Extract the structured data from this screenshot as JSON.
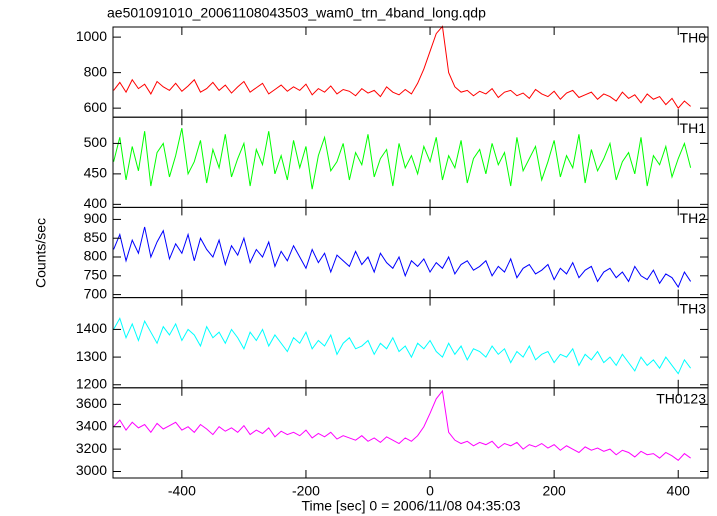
{
  "chart_data": {
    "type": "line",
    "title": "ae501091010_20061108043503_wam0_trn_4band_long.qdp",
    "x_label": "Time [sec] 0 = 2006/11/08 04:35:03",
    "y_label": "Counts/sec",
    "xlim": [
      -511,
      448
    ],
    "xticks": [
      -400,
      -200,
      0,
      200,
      400
    ],
    "x": [
      -510,
      -500,
      -490,
      -480,
      -470,
      -460,
      -450,
      -440,
      -430,
      -420,
      -410,
      -400,
      -390,
      -380,
      -370,
      -360,
      -350,
      -340,
      -330,
      -320,
      -310,
      -300,
      -290,
      -280,
      -270,
      -260,
      -250,
      -240,
      -230,
      -220,
      -210,
      -200,
      -190,
      -180,
      -170,
      -160,
      -150,
      -140,
      -130,
      -120,
      -110,
      -100,
      -90,
      -80,
      -70,
      -60,
      -50,
      -40,
      -30,
      -20,
      -10,
      0,
      10,
      20,
      30,
      40,
      50,
      60,
      70,
      80,
      90,
      100,
      110,
      120,
      130,
      140,
      150,
      160,
      170,
      180,
      190,
      200,
      210,
      220,
      230,
      240,
      250,
      260,
      270,
      280,
      290,
      300,
      310,
      320,
      330,
      340,
      350,
      360,
      370,
      380,
      390,
      400,
      410,
      420
    ],
    "panels": [
      {
        "ylim": [
          549,
          1057
        ],
        "yticks": [
          600,
          800,
          1000
        ],
        "series": [
          {
            "name": "TH0",
            "color": "#ff0000",
            "values": [
              700,
              745,
              690,
              760,
              710,
              735,
              680,
              750,
              720,
              700,
              740,
              695,
              725,
              760,
              690,
              710,
              745,
              700,
              730,
              685,
              720,
              750,
              690,
              715,
              740,
              680,
              705,
              730,
              695,
              720,
              700,
              735,
              675,
              710,
              690,
              725,
              680,
              705,
              695,
              670,
              710,
              685,
              700,
              665,
              720,
              690,
              675,
              705,
              680,
              740,
              820,
              920,
              1020,
              1060,
              800,
              720,
              690,
              700,
              670,
              695,
              680,
              710,
              660,
              690,
              700,
              670,
              685,
              655,
              705,
              680,
              665,
              695,
              650,
              685,
              700,
              660,
              675,
              690,
              650,
              680,
              665,
              640,
              690,
              655,
              675,
              630,
              680,
              650,
              665,
              620,
              655,
              600,
              640,
              610
            ]
          }
        ]
      },
      {
        "ylim": [
          395,
          543
        ],
        "yticks": [
          400,
          450,
          500
        ],
        "series": [
          {
            "name": "TH1",
            "color": "#00ff00",
            "values": [
              470,
              510,
              440,
              495,
              455,
              520,
              430,
              485,
              500,
              445,
              480,
              525,
              450,
              470,
              505,
              435,
              490,
              460,
              515,
              445,
              475,
              500,
              430,
              490,
              465,
              520,
              450,
              480,
              440,
              505,
              460,
              495,
              425,
              480,
              510,
              455,
              470,
              500,
              440,
              485,
              465,
              515,
              445,
              475,
              490,
              430,
              500,
              460,
              480,
              450,
              495,
              470,
              510,
              440,
              480,
              460,
              505,
              435,
              475,
              490,
              450,
              500,
              465,
              485,
              430,
              510,
              455,
              475,
              495,
              440,
              470,
              505,
              445,
              480,
              460,
              515,
              435,
              490,
              455,
              475,
              500,
              440,
              470,
              485,
              450,
              510,
              430,
              480,
              465,
              495,
              445,
              475,
              500,
              460
            ]
          }
        ]
      },
      {
        "ylim": [
          692,
          932
        ],
        "yticks": [
          700,
          750,
          800,
          850,
          900
        ],
        "series": [
          {
            "name": "TH2",
            "color": "#0000ff",
            "values": [
              820,
              860,
              790,
              845,
              810,
              880,
              800,
              840,
              870,
              795,
              835,
              810,
              860,
              790,
              850,
              820,
              800,
              845,
              780,
              830,
              805,
              850,
              785,
              820,
              800,
              840,
              775,
              815,
              790,
              830,
              800,
              770,
              820,
              785,
              810,
              760,
              805,
              790,
              775,
              815,
              780,
              800,
              760,
              810,
              785,
              770,
              800,
              750,
              790,
              775,
              795,
              760,
              785,
              770,
              800,
              755,
              780,
              790,
              765,
              775,
              790,
              750,
              775,
              760,
              795,
              745,
              770,
              780,
              755,
              765,
              780,
              740,
              770,
              755,
              785,
              745,
              765,
              775,
              735,
              760,
              770,
              745,
              760,
              735,
              775,
              750,
              740,
              765,
              730,
              755,
              745,
              720,
              760,
              735
            ]
          }
        ]
      },
      {
        "ylim": [
          1189,
          1515
        ],
        "yticks": [
          1200,
          1300,
          1400
        ],
        "series": [
          {
            "name": "TH3",
            "color": "#00ffff",
            "values": [
              1400,
              1440,
              1370,
              1420,
              1360,
              1430,
              1390,
              1350,
              1410,
              1380,
              1420,
              1360,
              1400,
              1380,
              1340,
              1410,
              1370,
              1390,
              1350,
              1400,
              1370,
              1330,
              1390,
              1360,
              1400,
              1340,
              1380,
              1350,
              1320,
              1370,
              1350,
              1390,
              1330,
              1360,
              1340,
              1380,
              1310,
              1350,
              1370,
              1330,
              1340,
              1360,
              1310,
              1350,
              1330,
              1370,
              1320,
              1340,
              1300,
              1350,
              1330,
              1360,
              1320,
              1300,
              1350,
              1310,
              1340,
              1290,
              1330,
              1320,
              1300,
              1340,
              1310,
              1330,
              1280,
              1320,
              1300,
              1340,
              1290,
              1310,
              1320,
              1280,
              1310,
              1300,
              1330,
              1270,
              1310,
              1290,
              1320,
              1280,
              1300,
              1270,
              1310,
              1280,
              1250,
              1300,
              1270,
              1290,
              1260,
              1300,
              1270,
              1240,
              1290,
              1260
            ]
          }
        ]
      },
      {
        "ylim": [
          2942,
          3748
        ],
        "yticks": [
          3000,
          3200,
          3400,
          3600
        ],
        "series": [
          {
            "name": "TH0123",
            "color": "#ff00ff",
            "values": [
              3400,
              3460,
              3370,
              3440,
              3390,
              3420,
              3350,
              3430,
              3380,
              3410,
              3440,
              3370,
              3400,
              3350,
              3420,
              3380,
              3330,
              3400,
              3360,
              3390,
              3350,
              3410,
              3330,
              3370,
              3340,
              3390,
              3310,
              3360,
              3330,
              3350,
              3320,
              3370,
              3300,
              3340,
              3310,
              3350,
              3290,
              3320,
              3300,
              3280,
              3320,
              3270,
              3300,
              3260,
              3310,
              3280,
              3250,
              3300,
              3270,
              3320,
              3400,
              3520,
              3650,
              3720,
              3350,
              3280,
              3250,
              3270,
              3230,
              3260,
              3240,
              3270,
              3210,
              3250,
              3230,
              3260,
              3200,
              3240,
              3220,
              3250,
              3210,
              3240,
              3190,
              3230,
              3200,
              3170,
              3220,
              3190,
              3210,
              3180,
              3200,
              3150,
              3190,
              3170,
              3130,
              3180,
              3150,
              3160,
              3120,
              3170,
              3140,
              3100,
              3160,
              3120
            ]
          }
        ]
      }
    ]
  }
}
